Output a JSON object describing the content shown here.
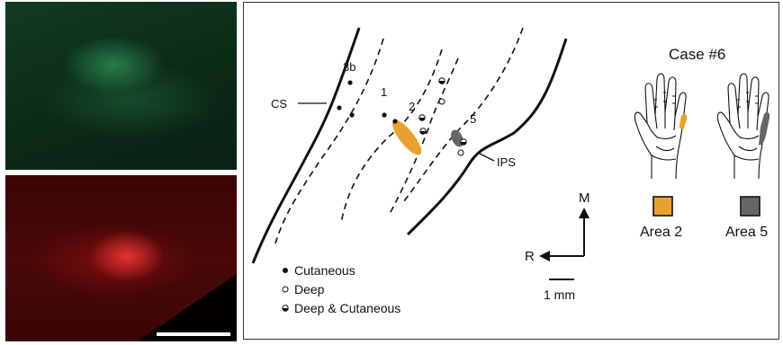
{
  "diagram": {
    "sulcus_labels": {
      "cs": "CS",
      "ips": "IPS"
    },
    "area_labels": {
      "a3b": "3b",
      "a1": "1",
      "a2": "2",
      "a5": "5"
    },
    "case_title": "Case #6",
    "legend": {
      "cutaneous": "Cutaneous",
      "deep": "Deep",
      "deep_cutaneous": "Deep & Cutaneous"
    },
    "orientation": {
      "medial": "M",
      "rostral": "R"
    },
    "scale_label": "1 mm",
    "swatches": [
      {
        "label": "Area 2",
        "color": "#e8a12e"
      },
      {
        "label": "Area 5",
        "color": "#666666"
      }
    ]
  },
  "micrographs": {
    "top_color": "#1f6b3a",
    "bottom_color": "#a01414"
  }
}
